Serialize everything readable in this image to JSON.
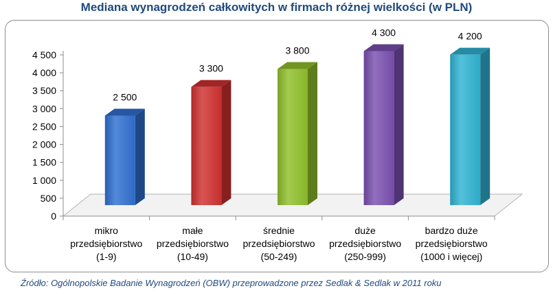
{
  "chart_data": {
    "type": "bar",
    "title": "Mediana wynagrodzeń całkowitych w firmach różnej wielkości (w PLN)",
    "categories": [
      [
        "mikro",
        "przedsiębiorstwo",
        "(1-9)"
      ],
      [
        "małe",
        "przedsiębiorstwo",
        "(10-49)"
      ],
      [
        "średnie",
        "przedsiębiorstwo",
        "(50-249)"
      ],
      [
        "duże",
        "przedsiębiorstwo",
        "(250-999)"
      ],
      [
        "bardzo duże",
        "przedsiębiorstwo",
        "(1000 i więcej)"
      ]
    ],
    "values": [
      2500,
      3300,
      3800,
      4300,
      4200
    ],
    "data_labels": [
      "2 500",
      "3 300",
      "3 800",
      "4 300",
      "4 200"
    ],
    "colors": [
      "#2f6fd0",
      "#d0302f",
      "#8fbf2a",
      "#7a4fb0",
      "#2fb3d3"
    ],
    "y_ticks": [
      "0",
      "500",
      "1 000",
      "1 500",
      "2 000",
      "2 500",
      "3 000",
      "3 500",
      "4 000",
      "4 500"
    ],
    "y_tick_values": [
      0,
      500,
      1000,
      1500,
      2000,
      2500,
      3000,
      3500,
      4000,
      4500
    ],
    "ylim": [
      0,
      4500
    ],
    "grid": false,
    "style": "3d"
  },
  "source": "Źródło: Ogólnopolskie Badanie Wynagrodzeń (OBW) przeprowadzone przez Sedlak & Sedlak w 2011 roku"
}
